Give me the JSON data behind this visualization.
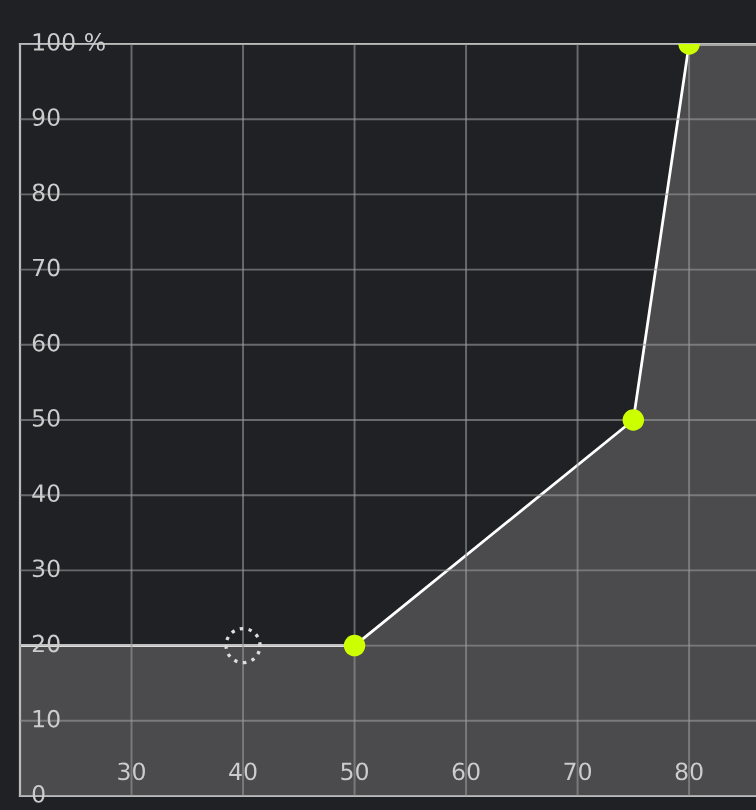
{
  "chart_data": {
    "type": "area",
    "xlim": [
      20,
      86
    ],
    "xticks": [
      30,
      40,
      50,
      60,
      70,
      80
    ],
    "ylim": [
      0,
      100
    ],
    "yticks": [
      {
        "value": 0,
        "label": "0"
      },
      10,
      20,
      30,
      40,
      50,
      60,
      70,
      80,
      90,
      {
        "value": 100,
        "label": "100 %"
      }
    ],
    "grid": true,
    "series": [
      {
        "color": "#4b4b4d",
        "x": [
          20,
          50,
          75,
          80,
          86
        ],
        "values": [
          20,
          20,
          50,
          100,
          100
        ]
      },
      {
        "type": "scatter",
        "color": "#ccff00",
        "x": [
          50,
          75,
          80
        ],
        "values": [
          20,
          50,
          100
        ]
      },
      {
        "type": "scatter",
        "color": "#dddddd",
        "x": [
          40
        ],
        "values": [
          20
        ],
        "line_style": "dotted"
      }
    ]
  }
}
